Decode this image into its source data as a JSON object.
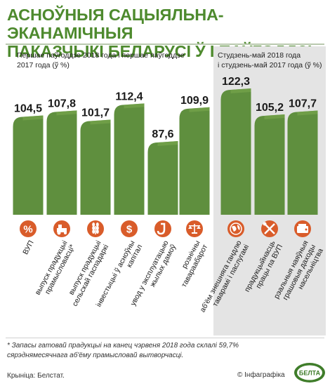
{
  "title_line1": "Асноўныя сацыяльна-эканамічныя",
  "title_line2": "паказчыкі Беларусі ў I паўгоддзі",
  "panels": [
    {
      "label_line1": "Першае паўгоддзе 2018 года і першае паўгоддзе",
      "label_line2": "2017 года (ў %)"
    },
    {
      "label_line1": "Студзень-май 2018 года",
      "label_line2": "і студзень-май 2017 года (ў %)"
    }
  ],
  "chart_data": {
    "type": "bar",
    "categories": [
      "ВУП",
      "выпуск прадукцыі прамысловасці*",
      "выпуск прадукцыі сельскай гаспадаркі",
      "інвестыцыі ў асноўны капітал",
      "увод у эксплуатацыю жылых дамоў",
      "рознічны тавараабарот",
      "аб'ём знешняга гандлю таварамі і паслугамі",
      "прадукцыйнасць працы па ВУП",
      "рэальныя наяўныя грашовыя даходы насельніцтва"
    ],
    "values": [
      104.5,
      107.8,
      101.7,
      112.4,
      87.6,
      109.9,
      122.3,
      105.2,
      107.7
    ],
    "value_labels": [
      "104,5",
      "107,8",
      "101,7",
      "112,4",
      "87,6",
      "109,9",
      "122,3",
      "105,2",
      "107,7"
    ],
    "category_lines": [
      [
        "ВУП"
      ],
      [
        "выпуск прадукцыі",
        "прамысловасці*"
      ],
      [
        "выпуск прадукцыі",
        "сельскай гаспадаркі"
      ],
      [
        "інвестыцыі ў асноўны",
        "капітал"
      ],
      [
        "увод у эксплуатацыю",
        "жылых дамоў"
      ],
      [
        "рознічны",
        "тавараабарот"
      ],
      [
        "аб'ём знешняга гандлю",
        "таварамі і паслугамі"
      ],
      [
        "прадукцыйнасць",
        "працы па ВУП"
      ],
      [
        "рэальныя наяўныя",
        "грашовыя даходы",
        "насельніцтва"
      ]
    ],
    "icons": [
      "percent-icon",
      "factory-icon",
      "wheat-icon",
      "dollar-icon",
      "crane-icon",
      "scales-icon",
      "globe-icon",
      "tools-icon",
      "wallet-icon"
    ],
    "colors": {
      "bar": "#5f8f3e",
      "bar_top": "#7aa84f",
      "icon_circle": "#d95c2a",
      "title": "#4e8a2e"
    }
  },
  "footnote_line1": "* Запасы гатовай прадукцыі на канец чэрвеня 2018 года склалі 59,7%",
  "footnote_line2": "сярэднямесячнага аб'ёму прамысловай вытворчасці.",
  "source": "Крыніца: Белстат.",
  "credit": "© Інфаграфіка",
  "logo_text": "БЕЛТА"
}
